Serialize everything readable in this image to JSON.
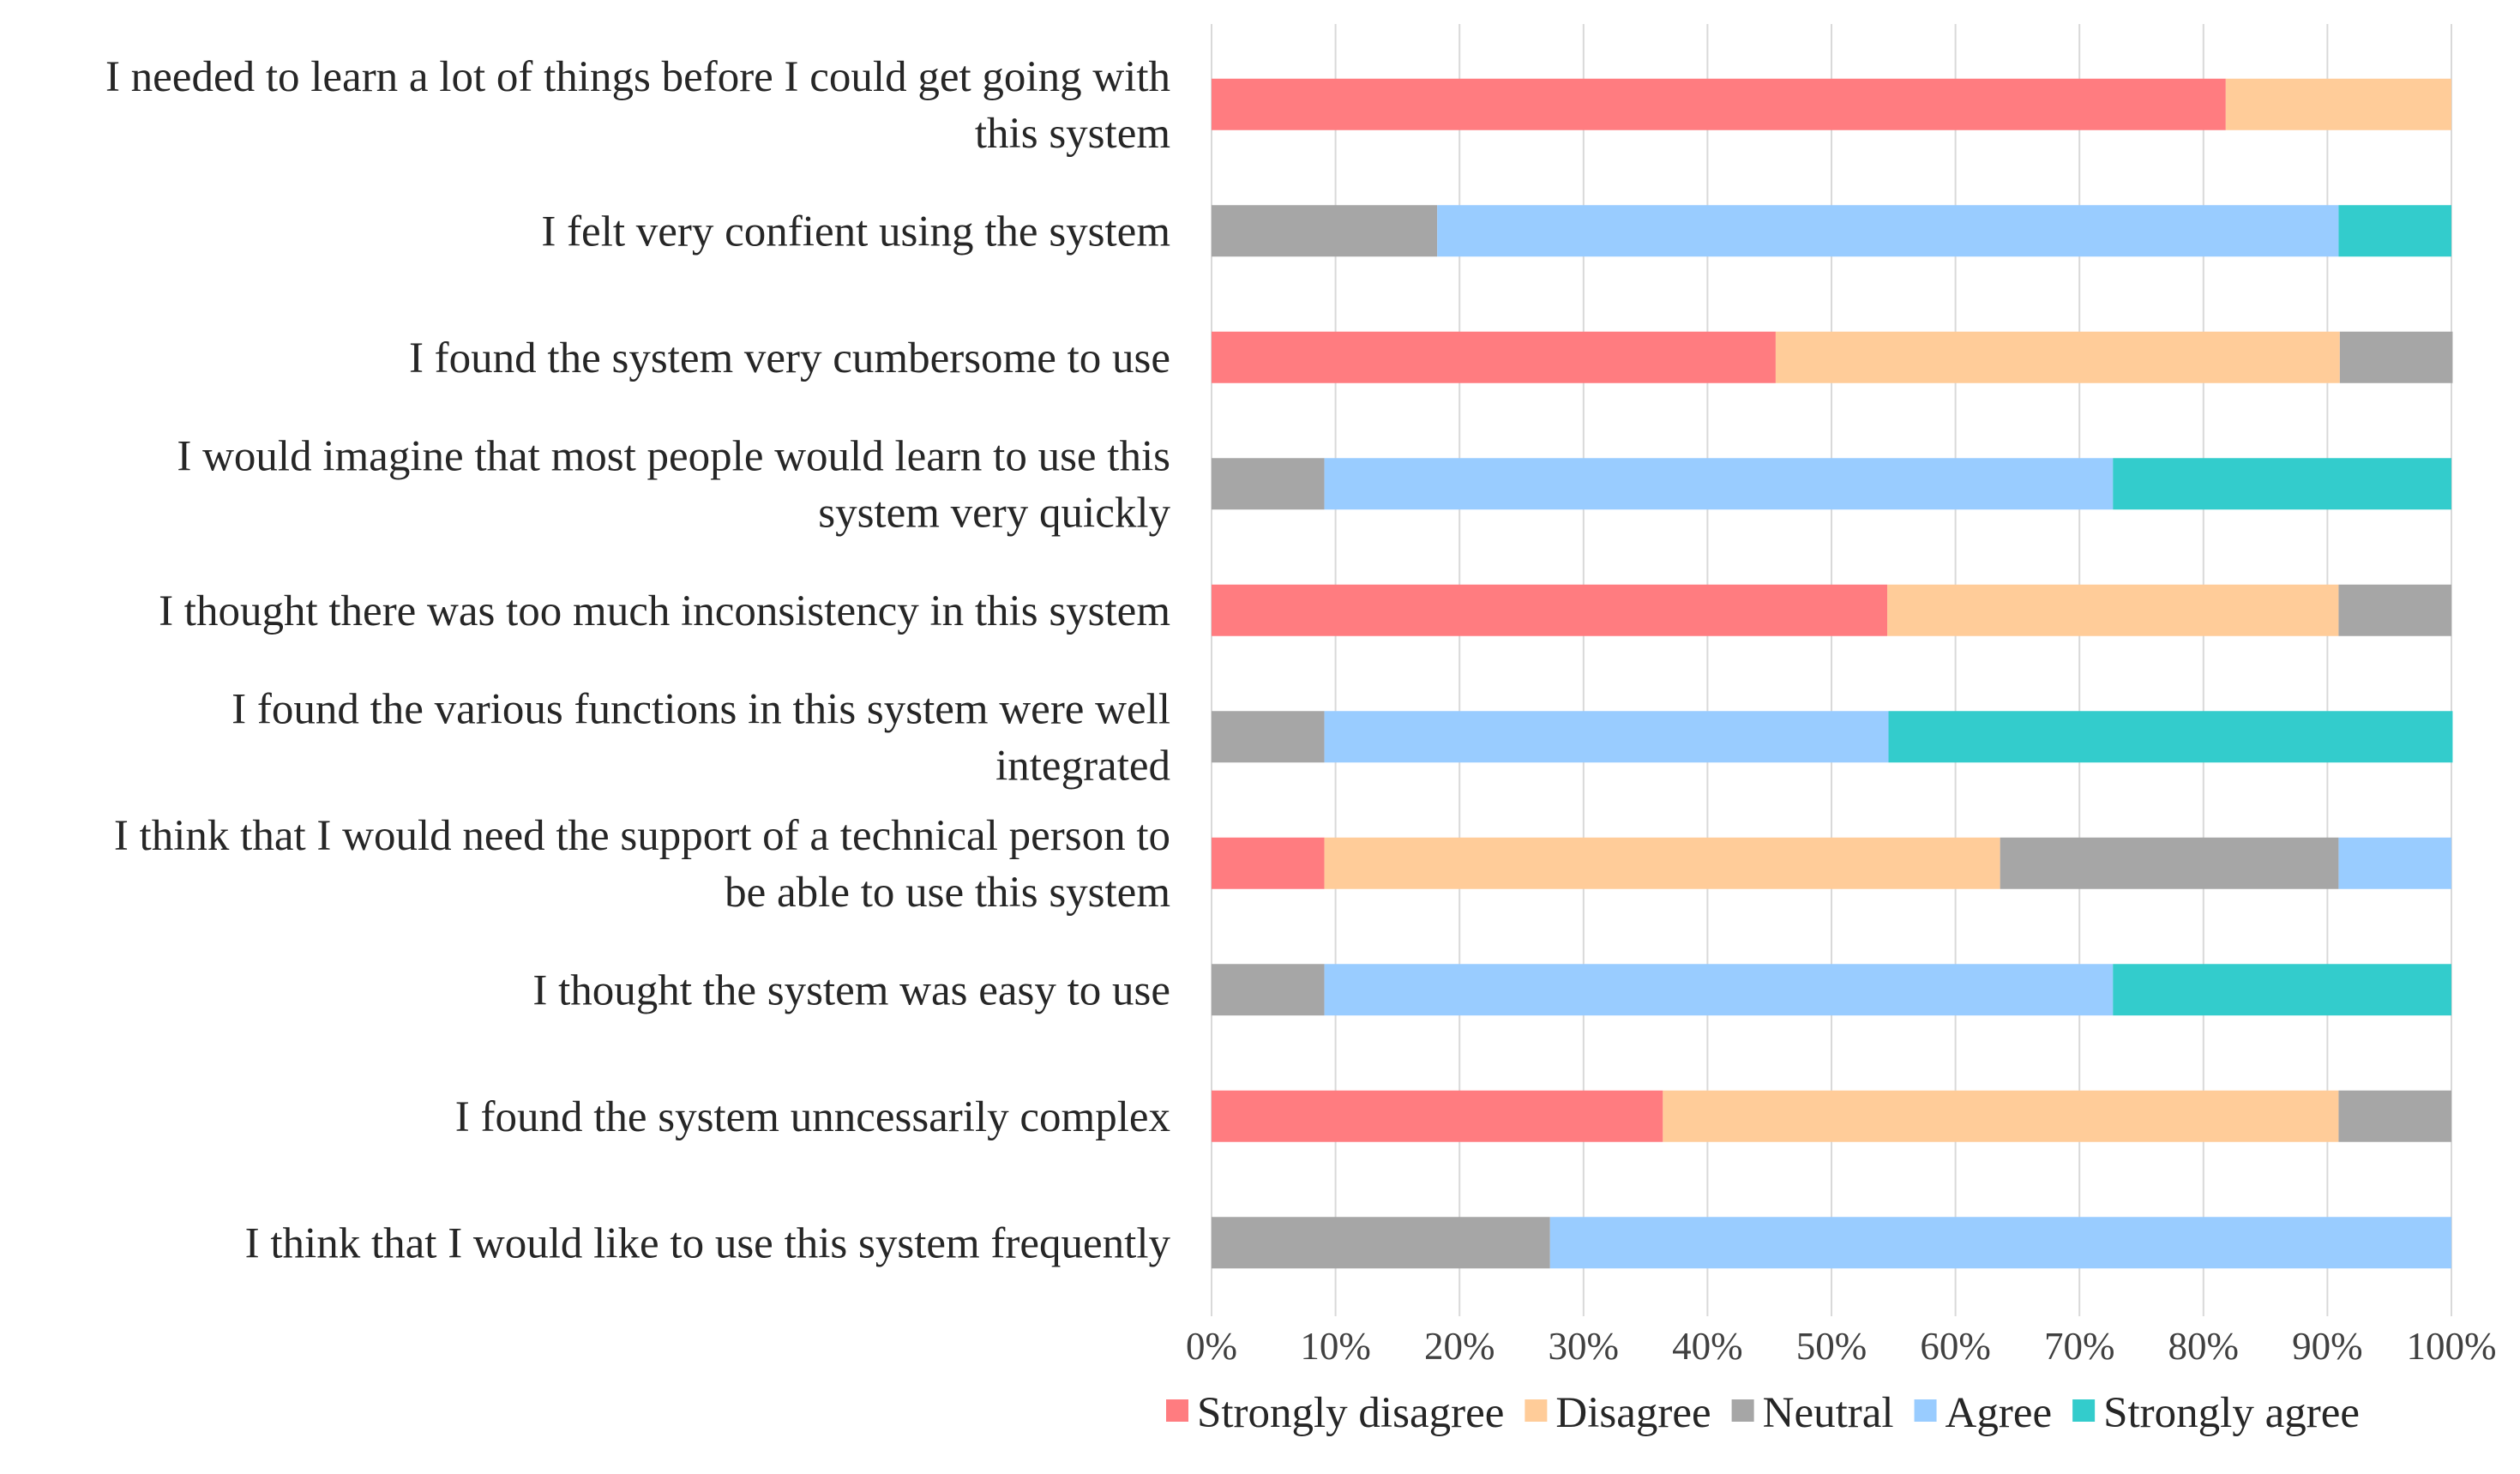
{
  "chart_data": {
    "type": "bar",
    "orientation": "horizontal",
    "stacked": "percent",
    "title": "",
    "xlabel": "",
    "ylabel": "",
    "xlim": [
      0,
      100
    ],
    "x_ticks": [
      "0%",
      "10%",
      "20%",
      "30%",
      "40%",
      "50%",
      "60%",
      "70%",
      "80%",
      "90%",
      "100%"
    ],
    "grid": true,
    "legend_position": "bottom",
    "categories": [
      [
        "I needed to learn a lot of things before I could get going with",
        "this system"
      ],
      [
        "I felt very confient using the system"
      ],
      [
        "I found the system very cumbersome to use"
      ],
      [
        "I would imagine that most people would learn to use this",
        "system very quickly"
      ],
      [
        "I thought there was too much inconsistency in this system"
      ],
      [
        "I found the various functions in this system were well",
        "integrated"
      ],
      [
        "I think that I would need the support of a technical person to",
        "be able to use this system"
      ],
      [
        "I thought the system was easy to use"
      ],
      [
        "I found the system unncessarily complex"
      ],
      [
        "I think that I would like to use this system frequently"
      ]
    ],
    "series": [
      {
        "name": "Strongly disagree",
        "color": "#ff7c80",
        "values": [
          81.8,
          0,
          45.5,
          0,
          54.5,
          0,
          9.1,
          0,
          36.4,
          0
        ]
      },
      {
        "name": "Disagree",
        "color": "#ffcc99",
        "values": [
          18.2,
          0,
          45.5,
          0,
          36.4,
          0,
          54.5,
          0,
          54.5,
          0
        ]
      },
      {
        "name": "Neutral",
        "color": "#a6a6a6",
        "values": [
          0,
          18.2,
          9.1,
          9.1,
          9.1,
          9.1,
          27.3,
          9.1,
          9.1,
          27.3
        ]
      },
      {
        "name": "Agree",
        "color": "#99ccff",
        "values": [
          0,
          72.7,
          0,
          63.6,
          0,
          45.5,
          9.1,
          63.6,
          0,
          72.7
        ]
      },
      {
        "name": "Strongly agree",
        "color": "#33cccc",
        "values": [
          0,
          9.1,
          0,
          27.3,
          0,
          45.5,
          0,
          27.3,
          0,
          0
        ]
      }
    ]
  }
}
